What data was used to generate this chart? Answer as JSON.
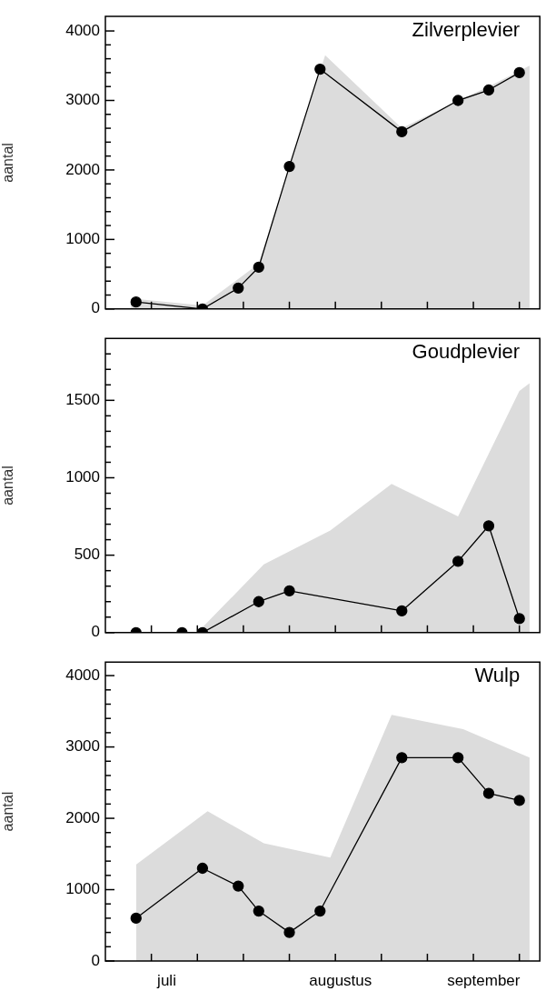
{
  "chart_data": [
    {
      "type": "line",
      "title": "Zilverplevier",
      "ylabel": "aantal",
      "xlim": [
        "--06-22",
        "--09-15"
      ],
      "ylim": [
        0,
        4210
      ],
      "xticks": [
        {
          "value": "--07-01",
          "label": null
        },
        {
          "value": "--07-10",
          "label": null
        },
        {
          "value": "--07-19",
          "label": null
        },
        {
          "value": "--07-28",
          "label": null
        },
        {
          "value": "--08-06",
          "label": null
        },
        {
          "value": "--08-15",
          "label": null
        },
        {
          "value": "--08-24",
          "label": null
        },
        {
          "value": "--09-02",
          "label": null
        },
        {
          "value": "--09-11",
          "label": null
        }
      ],
      "yticks": [
        0,
        {
          "value": 200,
          "label": null
        },
        {
          "value": 400,
          "label": null
        },
        {
          "value": 600,
          "label": null
        },
        {
          "value": 800,
          "label": null
        },
        1000,
        {
          "value": 1200,
          "label": null
        },
        {
          "value": 1400,
          "label": null
        },
        {
          "value": 1600,
          "label": null
        },
        {
          "value": 1800,
          "label": null
        },
        2000,
        {
          "value": 2200,
          "label": null
        },
        {
          "value": 2400,
          "label": null
        },
        {
          "value": 2600,
          "label": null
        },
        {
          "value": 2800,
          "label": null
        },
        3000,
        {
          "value": 3200,
          "label": null
        },
        {
          "value": 3400,
          "label": null
        },
        {
          "value": 3600,
          "label": null
        },
        {
          "value": 3800,
          "label": null
        },
        4000
      ],
      "tick_labels": "y",
      "legend": false,
      "series": [
        {
          "type": "area",
          "color": "#dcdcdc",
          "x": [
            "--06-27",
            "--07-11",
            "--07-22",
            "--07-28",
            "--08-04",
            "--08-19",
            "--08-30",
            "--09-05",
            "--09-13"
          ],
          "values": [
            150,
            50,
            650,
            2050,
            3650,
            2600,
            3000,
            3200,
            3500
          ]
        },
        {
          "type": "line",
          "color": "#000000",
          "marker": "circle",
          "line_style": "solid",
          "x": [
            "--06-28",
            "--07-11",
            "--07-18",
            "--07-22",
            "--07-28",
            "--08-03",
            "--08-19",
            "--08-30",
            "--09-05",
            "--09-11"
          ],
          "values": [
            100,
            0,
            300,
            600,
            2050,
            3450,
            2550,
            3000,
            3150,
            3400
          ]
        }
      ]
    },
    {
      "type": "line",
      "title": "Goudplevier",
      "ylabel": "aantal",
      "xlim": [
        "--06-22",
        "--09-15"
      ],
      "ylim": [
        0,
        1900
      ],
      "xticks": [
        {
          "value": "--07-01",
          "label": null
        },
        {
          "value": "--07-10",
          "label": null
        },
        {
          "value": "--07-19",
          "label": null
        },
        {
          "value": "--07-28",
          "label": null
        },
        {
          "value": "--08-06",
          "label": null
        },
        {
          "value": "--08-15",
          "label": null
        },
        {
          "value": "--08-24",
          "label": null
        },
        {
          "value": "--09-02",
          "label": null
        },
        {
          "value": "--09-11",
          "label": null
        }
      ],
      "yticks": [
        0,
        {
          "value": 100,
          "label": null
        },
        {
          "value": 200,
          "label": null
        },
        {
          "value": 300,
          "label": null
        },
        {
          "value": 400,
          "label": null
        },
        500,
        {
          "value": 600,
          "label": null
        },
        {
          "value": 700,
          "label": null
        },
        {
          "value": 800,
          "label": null
        },
        {
          "value": 900,
          "label": null
        },
        1000,
        {
          "value": 1100,
          "label": null
        },
        {
          "value": 1200,
          "label": null
        },
        {
          "value": 1300,
          "label": null
        },
        {
          "value": 1400,
          "label": null
        },
        1500,
        {
          "value": 1600,
          "label": null
        },
        {
          "value": 1700,
          "label": null
        },
        {
          "value": 1800,
          "label": null
        }
      ],
      "tick_labels": "y",
      "legend": false,
      "series": [
        {
          "type": "area",
          "color": "#dcdcdc",
          "x": [
            "--07-10",
            "--07-23",
            "--08-05",
            "--08-17",
            "--08-30",
            "--09-11",
            "--09-13"
          ],
          "values": [
            0,
            440,
            660,
            960,
            750,
            1560,
            1610
          ]
        },
        {
          "type": "line",
          "color": "#000000",
          "marker": "circle",
          "line_style": "solid",
          "x": [
            "--06-28",
            "--07-07",
            "--07-11",
            "--07-22",
            "--07-28",
            "--08-19",
            "--08-30",
            "--09-05",
            "--09-11"
          ],
          "values": [
            0,
            0,
            0,
            200,
            270,
            140,
            460,
            690,
            90
          ]
        }
      ]
    },
    {
      "type": "line",
      "title": "Wulp",
      "ylabel": "aantal",
      "xlim": [
        "--06-22",
        "--09-15"
      ],
      "ylim": [
        0,
        4190
      ],
      "xticks": [
        {
          "value": "--07-01",
          "label": null
        },
        {
          "value": "--07-04",
          "label": "juli"
        },
        {
          "value": "--07-10",
          "label": null
        },
        {
          "value": "--07-19",
          "label": null
        },
        {
          "value": "--07-28",
          "label": null
        },
        {
          "value": "--08-06",
          "label": null
        },
        {
          "value": "--08-07",
          "label": "augustus"
        },
        {
          "value": "--08-15",
          "label": null
        },
        {
          "value": "--08-24",
          "label": null
        },
        {
          "value": "--09-02",
          "label": null
        },
        {
          "value": "--09-04",
          "label": "september"
        },
        {
          "value": "--09-11",
          "label": null
        }
      ],
      "yticks": [
        0,
        {
          "value": 200,
          "label": null
        },
        {
          "value": 400,
          "label": null
        },
        {
          "value": 600,
          "label": null
        },
        {
          "value": 800,
          "label": null
        },
        1000,
        {
          "value": 1200,
          "label": null
        },
        {
          "value": 1400,
          "label": null
        },
        {
          "value": 1600,
          "label": null
        },
        {
          "value": 1800,
          "label": null
        },
        2000,
        {
          "value": 2200,
          "label": null
        },
        {
          "value": 2400,
          "label": null
        },
        {
          "value": 2600,
          "label": null
        },
        {
          "value": 2800,
          "label": null
        },
        3000,
        {
          "value": 3200,
          "label": null
        },
        {
          "value": 3400,
          "label": null
        },
        {
          "value": 3600,
          "label": null
        },
        {
          "value": 3800,
          "label": null
        },
        4000
      ],
      "legend": false,
      "series": [
        {
          "type": "area",
          "color": "#dcdcdc",
          "x": [
            "--06-28",
            "--07-12",
            "--07-23",
            "--08-05",
            "--08-17",
            "--08-31",
            "--09-13"
          ],
          "values": [
            1350,
            2100,
            1650,
            1450,
            3450,
            3250,
            2850
          ]
        },
        {
          "type": "line",
          "color": "#000000",
          "marker": "circle",
          "line_style": "solid",
          "x": [
            "--06-28",
            "--07-11",
            "--07-18",
            "--07-22",
            "--07-28",
            "--08-03",
            "--08-19",
            "--08-30",
            "--09-05",
            "--09-11"
          ],
          "values": [
            600,
            1300,
            1050,
            700,
            400,
            700,
            2850,
            2850,
            2350,
            2250
          ]
        }
      ]
    }
  ]
}
